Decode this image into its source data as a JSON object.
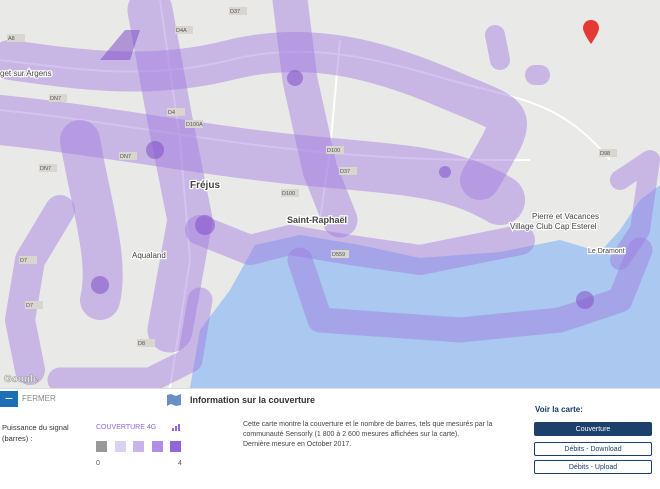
{
  "map": {
    "places": [
      "get sur Argens",
      "Fréjus",
      "Saint-Raphaël",
      "Aqualand",
      "Pierre et Vacances",
      "Village Club Cap Esterel",
      "Le Dramont"
    ],
    "roads": [
      "D37",
      "D4A",
      "A8",
      "DN7",
      "DN7",
      "D4",
      "D100A",
      "DN7",
      "D100",
      "D37",
      "D100",
      "D98",
      "D7",
      "D8",
      "D7",
      "D559"
    ],
    "attribution": "Google"
  },
  "panel": {
    "close": "FERMER",
    "title": "Information sur la couverture",
    "legend": {
      "label": "Puissance du signal (barres) :",
      "heading": "COUVERTURE 4G",
      "min": 0,
      "max": 4
    },
    "description": [
      "Cette carte montre la couverture et le nombre de barres, tels que mesurés par la",
      "communauté Sensorly (1 800 à 2 600 mesures affichées sur la carte).",
      "Dernière mesure en October 2017."
    ],
    "view": {
      "label": "Voir la carte:",
      "buttons": [
        "Couverture",
        "Débits - Download",
        "Débits - Upload"
      ]
    }
  }
}
